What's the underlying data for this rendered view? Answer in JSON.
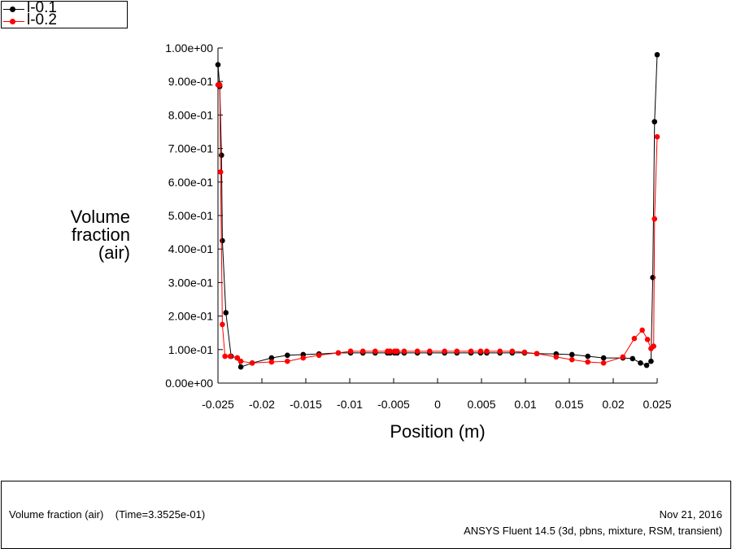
{
  "legend": {
    "entries": [
      {
        "label": "l-0.1",
        "color": "#000000"
      },
      {
        "label": "l-0.2",
        "color": "#ff0000"
      }
    ]
  },
  "axes": {
    "ylabel_lines": [
      "Volume",
      "fraction",
      "(air)"
    ],
    "xlabel": "Position (m)"
  },
  "footer": {
    "title": "Volume fraction (air)    (Time=3.3525e-01)",
    "date": "Nov 21, 2016",
    "software": "ANSYS Fluent 14.5 (3d, pbns, mixture, RSM, transient)"
  },
  "chart_data": {
    "type": "line",
    "xlim": [
      -0.025,
      0.025
    ],
    "ylim": [
      0,
      1
    ],
    "x_ticks": [
      -0.025,
      -0.02,
      -0.015,
      -0.01,
      -0.005,
      0,
      0.005,
      0.01,
      0.015,
      0.02,
      0.025
    ],
    "x_tick_labels": [
      "-0.025",
      "-0.02",
      "-0.015",
      "-0.01",
      "-0.005",
      "0",
      "0.005",
      "0.01",
      "0.015",
      "0.02",
      "0.025"
    ],
    "y_ticks": [
      0,
      0.1,
      0.2,
      0.3,
      0.4,
      0.5,
      0.6,
      0.7,
      0.8,
      0.9,
      1.0
    ],
    "y_tick_labels": [
      "0.00e+00",
      "1.00e-01",
      "2.00e-01",
      "3.00e-01",
      "4.00e-01",
      "5.00e-01",
      "6.00e-01",
      "7.00e-01",
      "8.00e-01",
      "9.00e-01",
      "1.00e+00"
    ],
    "grid": false,
    "series": [
      {
        "name": "l-0.1",
        "color": "#000000",
        "points": [
          [
            -0.025,
            0.95
          ],
          [
            -0.0248,
            0.885
          ],
          [
            -0.0246,
            0.68
          ],
          [
            -0.0245,
            0.425
          ],
          [
            -0.0241,
            0.21
          ],
          [
            -0.0235,
            0.08
          ],
          [
            -0.0228,
            0.075
          ],
          [
            -0.0224,
            0.048
          ],
          [
            -0.0211,
            0.06
          ],
          [
            -0.0189,
            0.075
          ],
          [
            -0.0171,
            0.083
          ],
          [
            -0.0153,
            0.085
          ],
          [
            -0.0135,
            0.087
          ],
          [
            -0.0113,
            0.09
          ],
          [
            -0.0099,
            0.09
          ],
          [
            -0.0085,
            0.09
          ],
          [
            -0.0071,
            0.09
          ],
          [
            -0.0057,
            0.09
          ],
          [
            -0.0054,
            0.09
          ],
          [
            -0.0049,
            0.09
          ],
          [
            -0.0046,
            0.09
          ],
          [
            -0.0038,
            0.09
          ],
          [
            -0.0023,
            0.09
          ],
          [
            -0.0009,
            0.09
          ],
          [
            0.0008,
            0.09
          ],
          [
            0.0022,
            0.09
          ],
          [
            0.0038,
            0.09
          ],
          [
            0.0049,
            0.09
          ],
          [
            0.0056,
            0.09
          ],
          [
            0.0071,
            0.09
          ],
          [
            0.0085,
            0.09
          ],
          [
            0.0099,
            0.09
          ],
          [
            0.0113,
            0.088
          ],
          [
            0.0135,
            0.087
          ],
          [
            0.0153,
            0.085
          ],
          [
            0.0171,
            0.08
          ],
          [
            0.0189,
            0.075
          ],
          [
            0.0211,
            0.075
          ],
          [
            0.0222,
            0.073
          ],
          [
            0.0231,
            0.06
          ],
          [
            0.0238,
            0.053
          ],
          [
            0.0243,
            0.065
          ],
          [
            0.0245,
            0.315
          ],
          [
            0.0247,
            0.78
          ],
          [
            0.025,
            0.98
          ]
        ]
      },
      {
        "name": "l-0.2",
        "color": "#ff0000",
        "points": [
          [
            -0.025,
            0.89
          ],
          [
            -0.0248,
            0.89
          ],
          [
            -0.0247,
            0.63
          ],
          [
            -0.0245,
            0.175
          ],
          [
            -0.0242,
            0.08
          ],
          [
            -0.0236,
            0.08
          ],
          [
            -0.0228,
            0.075
          ],
          [
            -0.0224,
            0.065
          ],
          [
            -0.0211,
            0.06
          ],
          [
            -0.0189,
            0.063
          ],
          [
            -0.0171,
            0.065
          ],
          [
            -0.0153,
            0.075
          ],
          [
            -0.0135,
            0.083
          ],
          [
            -0.0113,
            0.09
          ],
          [
            -0.0099,
            0.095
          ],
          [
            -0.0085,
            0.095
          ],
          [
            -0.0071,
            0.095
          ],
          [
            -0.0057,
            0.095
          ],
          [
            -0.0054,
            0.095
          ],
          [
            -0.0049,
            0.095
          ],
          [
            -0.0046,
            0.095
          ],
          [
            -0.0038,
            0.095
          ],
          [
            -0.0023,
            0.095
          ],
          [
            -0.0009,
            0.095
          ],
          [
            0.0008,
            0.095
          ],
          [
            0.0022,
            0.095
          ],
          [
            0.0038,
            0.095
          ],
          [
            0.0049,
            0.095
          ],
          [
            0.0056,
            0.095
          ],
          [
            0.0071,
            0.095
          ],
          [
            0.0085,
            0.095
          ],
          [
            0.0099,
            0.092
          ],
          [
            0.0113,
            0.088
          ],
          [
            0.0135,
            0.078
          ],
          [
            0.0153,
            0.07
          ],
          [
            0.0171,
            0.063
          ],
          [
            0.0189,
            0.06
          ],
          [
            0.0211,
            0.078
          ],
          [
            0.0224,
            0.133
          ],
          [
            0.0233,
            0.158
          ],
          [
            0.0239,
            0.13
          ],
          [
            0.0243,
            0.103
          ],
          [
            0.0246,
            0.11
          ],
          [
            0.0247,
            0.49
          ],
          [
            0.025,
            0.735
          ]
        ]
      }
    ]
  }
}
